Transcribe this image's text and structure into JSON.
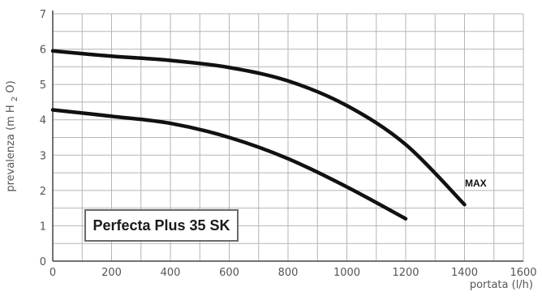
{
  "chart_data": {
    "type": "line",
    "xlabel": "portata (l/h)",
    "ylabel": "prevalenza (m H",
    "ylabel_sub": "2",
    "ylabel_tail": "O)",
    "xlim": [
      0,
      1600
    ],
    "ylim": [
      0,
      7
    ],
    "x_ticks": [
      0,
      200,
      400,
      600,
      800,
      1000,
      1200,
      1400,
      1600
    ],
    "y_ticks": [
      0,
      1,
      2,
      3,
      4,
      5,
      6,
      7
    ],
    "grid": true,
    "series": [
      {
        "name": "MAX",
        "x": [
          0,
          200,
          400,
          600,
          800,
          1000,
          1200,
          1400
        ],
        "y": [
          5.95,
          5.8,
          5.68,
          5.48,
          5.1,
          4.4,
          3.3,
          1.6
        ]
      },
      {
        "x": [
          0,
          200,
          400,
          600,
          800,
          1000,
          1200
        ],
        "y": [
          4.28,
          4.1,
          3.9,
          3.5,
          2.9,
          2.1,
          1.2
        ]
      }
    ],
    "annotations": [
      {
        "text": "MAX"
      },
      {
        "text": "Perfecta Plus 35 SK"
      }
    ],
    "colors": {
      "line": "#111111",
      "grid": "#b5b5b5",
      "axis": "#444444"
    }
  }
}
